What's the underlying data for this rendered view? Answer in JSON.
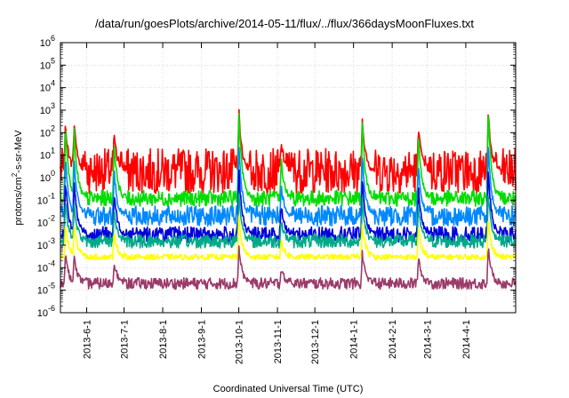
{
  "chart_data": {
    "type": "line",
    "title": "/data/run/goesPlots/archive/2014-05-11/flux/../flux/366daysMoonFluxes.txt",
    "xlabel": "Coordinated Universal Time (UTC)",
    "ylabel": "protons/cm^2-s-sr-MeV",
    "ylabel_parts": {
      "prefix": "protons/cm",
      "sup": "2",
      "suffix": "-s-sr-MeV"
    },
    "y_scale": "log",
    "ylim": [
      1e-06,
      1000000.0
    ],
    "xlim": [
      "2013-05-11",
      "2014-05-11"
    ],
    "y_ticks": [
      {
        "exp": "-6"
      },
      {
        "exp": "-5"
      },
      {
        "exp": "-4"
      },
      {
        "exp": "-3"
      },
      {
        "exp": "-2"
      },
      {
        "exp": "-1"
      },
      {
        "exp": "0"
      },
      {
        "exp": "1"
      },
      {
        "exp": "2"
      },
      {
        "exp": "3"
      },
      {
        "exp": "4"
      },
      {
        "exp": "5"
      },
      {
        "exp": "6"
      }
    ],
    "y_tick_base": "10",
    "x_ticks": [
      {
        "label": "2013-6-1",
        "date": "2013-06-01"
      },
      {
        "label": "2013-7-1",
        "date": "2013-07-01"
      },
      {
        "label": "2013-8-1",
        "date": "2013-08-01"
      },
      {
        "label": "2013-9-1",
        "date": "2013-09-01"
      },
      {
        "label": "2013-10-1",
        "date": "2013-10-01"
      },
      {
        "label": "2013-11-1",
        "date": "2013-11-01"
      },
      {
        "label": "2013-12-1",
        "date": "2013-12-01"
      },
      {
        "label": "2014-1-1",
        "date": "2014-01-01"
      },
      {
        "label": "2014-2-1",
        "date": "2014-02-01"
      },
      {
        "label": "2014-3-1",
        "date": "2014-03-01"
      },
      {
        "label": "2014-4-1",
        "date": "2014-04-01"
      }
    ],
    "grid": true,
    "legend": "none",
    "events": [
      {
        "date": "2013-05-15",
        "peak": 300.0
      },
      {
        "date": "2013-05-22",
        "peak": 300.0
      },
      {
        "date": "2013-06-23",
        "peak": 100.0
      },
      {
        "date": "2013-10-01",
        "peak": 1000.0
      },
      {
        "date": "2013-11-04",
        "peak": 30.0
      },
      {
        "date": "2014-01-08",
        "peak": 400.0
      },
      {
        "date": "2014-02-22",
        "peak": 200.0
      },
      {
        "date": "2014-04-19",
        "peak": 1000.0
      }
    ],
    "series": [
      {
        "color": "#ff0000",
        "base": 2.0,
        "spread_decades": 1.0,
        "peak_factor": 1.0
      },
      {
        "color": "#00dd00",
        "base": 0.12,
        "spread_decades": 0.35,
        "peak_factor": 0.9
      },
      {
        "color": "#0088ff",
        "base": 0.02,
        "spread_decades": 0.45,
        "peak_factor": 0.6
      },
      {
        "color": "#0000dd",
        "base": 0.003,
        "spread_decades": 0.35,
        "peak_factor": 0.5
      },
      {
        "color": "#00aa88",
        "base": 0.0015,
        "spread_decades": 0.3,
        "peak_factor": 0.2
      },
      {
        "color": "#ffff00",
        "base": 0.0003,
        "spread_decades": 0.12,
        "peak_factor": 0.05
      },
      {
        "color": "#9b3b6a",
        "base": 2e-05,
        "spread_decades": 0.25,
        "peak_factor": 0.01
      }
    ]
  }
}
